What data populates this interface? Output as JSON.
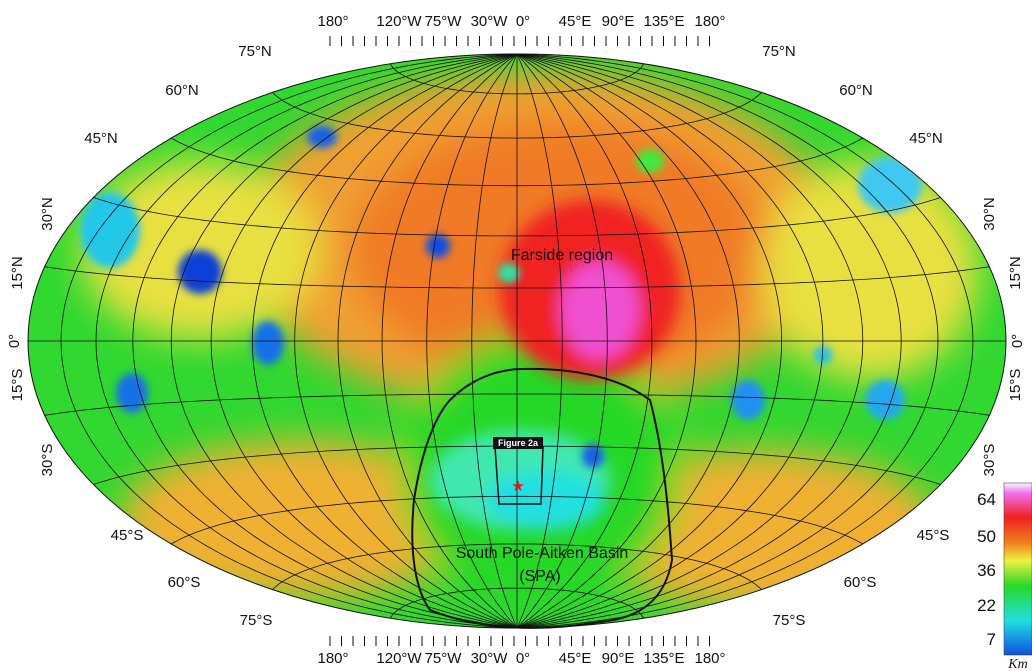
{
  "map": {
    "projection": "hammer",
    "regions": {
      "farside": "Farside region",
      "spa_line1": "South Pole-Aitken Basin",
      "spa_line2": "(SPA)"
    },
    "inset_label": "Figure 2a",
    "marker": "red-star-icon",
    "top_lon_labels": [
      "180°",
      "120°W",
      "75°W",
      "30°W",
      "0°",
      "45°E",
      "90°E",
      "135°E",
      "180°"
    ],
    "bottom_lon_labels": [
      "180°",
      "120°W",
      "75°W",
      "30°W",
      "0°",
      "45°E",
      "90°E",
      "135°E",
      "180°"
    ],
    "left_lat_labels": [
      "75°N",
      "60°N",
      "45°N",
      "30°N",
      "15°N",
      "0°",
      "15°S",
      "30°S",
      "45°S",
      "60°S",
      "75°S"
    ],
    "right_lat_labels": [
      "75°N",
      "60°N",
      "45°N",
      "30°N",
      "15°N",
      "0°",
      "15°S",
      "30°S",
      "45°S",
      "60°S",
      "75°S"
    ],
    "colors": {
      "blue": "#1060e8",
      "cyan": "#20e0e0",
      "green": "#28d828",
      "yellow": "#f0f040",
      "orange": "#f0a030",
      "red": "#f02020",
      "magenta": "#f040f0"
    }
  },
  "legend": {
    "values": [
      "64",
      "50",
      "36",
      "22",
      "7"
    ],
    "unit": "Km"
  }
}
